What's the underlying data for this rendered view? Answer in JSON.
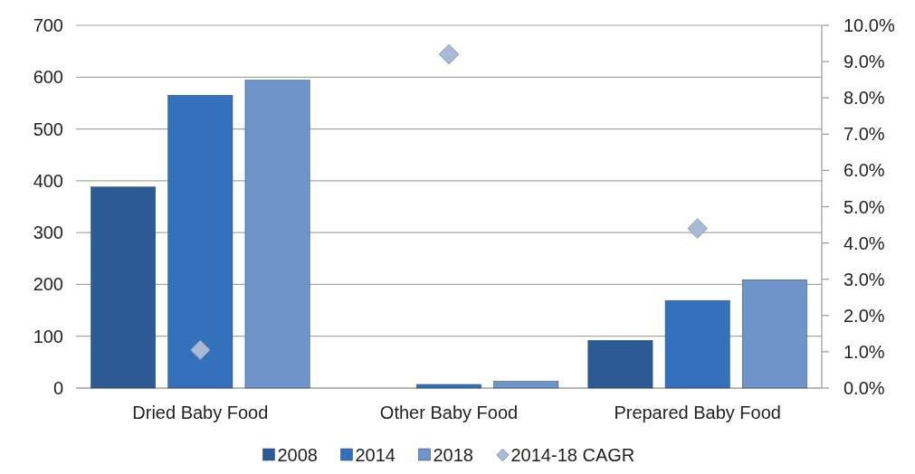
{
  "chart_data": {
    "type": "bar",
    "categories": [
      "Dried Baby Food",
      "Other Baby Food",
      "Prepared Baby Food"
    ],
    "series": [
      {
        "name": "2008",
        "color": "#2c5a94",
        "values": [
          388,
          0,
          92
        ]
      },
      {
        "name": "2014",
        "color": "#3571bb",
        "values": [
          565,
          7,
          169
        ]
      },
      {
        "name": "2018",
        "color": "#6f94c9",
        "values": [
          594,
          13,
          209
        ]
      },
      {
        "name": "2014-18 CAGR",
        "type": "scatter",
        "axis": "y2",
        "color": "#a9bad6",
        "values": [
          1.05,
          9.2,
          4.4
        ]
      }
    ],
    "ylim": [
      0,
      700
    ],
    "yticks": [
      0,
      100,
      200,
      300,
      400,
      500,
      600,
      700
    ],
    "y2lim": [
      0,
      10
    ],
    "y2ticks": [
      {
        "value": 0,
        "label": "0.0%"
      },
      {
        "value": 1,
        "label": "1.0%"
      },
      {
        "value": 2,
        "label": "2.0%"
      },
      {
        "value": 3,
        "label": "3.0%"
      },
      {
        "value": 4,
        "label": "4.0%"
      },
      {
        "value": 5,
        "label": "5.0%"
      },
      {
        "value": 6,
        "label": "6.0%"
      },
      {
        "value": 7,
        "label": "7.0%"
      },
      {
        "value": 8,
        "label": "8.0%"
      },
      {
        "value": 9,
        "label": "9.0%"
      },
      {
        "value": 10,
        "label": "10.0%"
      }
    ],
    "grid": "y",
    "legend": "bottom",
    "marker": "diamond"
  }
}
